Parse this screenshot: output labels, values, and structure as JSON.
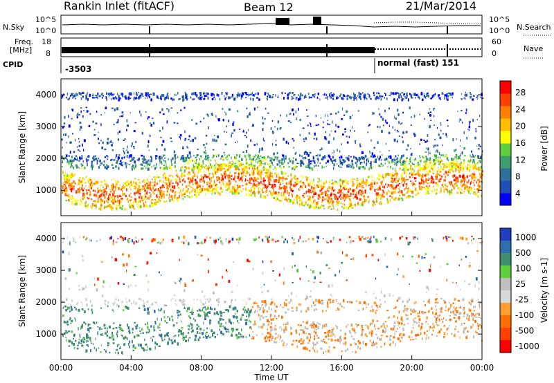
{
  "header": {
    "station": "Rankin Inlet (fitACF)",
    "beam": "Beam 12",
    "date": "21/Mar/2014"
  },
  "panels_top": {
    "nsky_label": "N.Sky",
    "nsky_ticks": [
      "10^5",
      "10^0"
    ],
    "nsearch_label": "N.Search",
    "nsearch_ticks": [
      "10^5",
      "10^0"
    ],
    "freq_label_1": "Freq.",
    "freq_label_2": "[MHz]",
    "freq_ticks": [
      "18",
      "8"
    ],
    "nave_label": "Nave",
    "nave_ticks": [
      "60",
      "0"
    ],
    "cpid_label": "CPID",
    "cpid_values": [
      "-3503",
      "normal (fast) 151"
    ]
  },
  "colors": {
    "power": [
      "#0000ff",
      "#1f4fb5",
      "#2f6f9a",
      "#3f9f6f",
      "#5fcf3f",
      "#ffff00",
      "#ffbf00",
      "#ff8000",
      "#ff4000",
      "#ff0000"
    ],
    "velocity": [
      "#1f3fbf",
      "#2f6faf",
      "#3f8f6f",
      "#5fcf3f",
      "#c0c0c0",
      "#d8d8d8",
      "#ff9f30",
      "#ff7000",
      "#ff4000",
      "#ff0000"
    ]
  },
  "chart_data": [
    {
      "type": "heatmap",
      "title": "",
      "xlabel": "Time UT",
      "ylabel": "Slant Range [km]",
      "x_ticks": [
        "00:00",
        "04:00",
        "08:00",
        "12:00",
        "16:00",
        "20:00",
        "00:00"
      ],
      "y_ticks": [
        1000,
        2000,
        3000,
        4000
      ],
      "ylim": [
        200,
        4500
      ],
      "colorbar": {
        "label": "Power [dB]",
        "ticks": [
          4,
          8,
          12,
          16,
          20,
          24,
          28
        ]
      }
    },
    {
      "type": "heatmap",
      "title": "",
      "xlabel": "Time UT",
      "ylabel": "Slant Range [km]",
      "x_ticks": [
        "00:00",
        "04:00",
        "08:00",
        "12:00",
        "16:00",
        "20:00",
        "00:00"
      ],
      "y_ticks": [
        1000,
        2000,
        3000,
        4000
      ],
      "ylim": [
        200,
        4500
      ],
      "colorbar": {
        "label": "Velocity [m s-1]",
        "ticks": [
          "1000",
          "500",
          "100",
          "25",
          "-25",
          "-100",
          "-500",
          "-1000"
        ]
      }
    }
  ]
}
